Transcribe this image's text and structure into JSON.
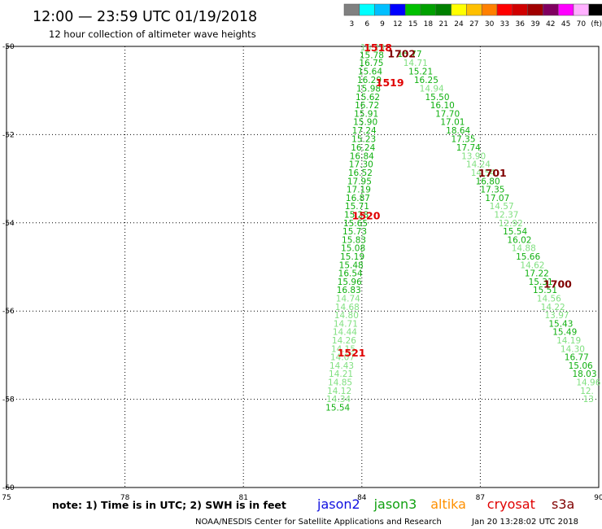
{
  "title": "12:00 — 23:59 UTC 01/19/2018",
  "subtitle": "12 hour collection of altimeter wave heights",
  "scale": {
    "labels": [
      "3",
      "6",
      "9",
      "12",
      "15",
      "18",
      "21",
      "24",
      "27",
      "30",
      "33",
      "36",
      "39",
      "42",
      "45",
      "70",
      "(ft)"
    ],
    "colors": [
      "#808080",
      "#00ffff",
      "#00bfff",
      "#0000ff",
      "#00c000",
      "#00a000",
      "#008000",
      "#ffff00",
      "#ffc000",
      "#ff8000",
      "#ff0000",
      "#d00000",
      "#a00000",
      "#800060",
      "#ff00ff",
      "#ffb0ff",
      "#000000"
    ]
  },
  "note": "note: 1) Time is in UTC; 2) SWH is in feet",
  "satellites": [
    {
      "name": "jason2",
      "color": "#1010e0"
    },
    {
      "name": "jason3",
      "color": "#10a010"
    },
    {
      "name": "altika",
      "color": "#ff9000"
    },
    {
      "name": "cryosat",
      "color": "#e00000"
    },
    {
      "name": "s3a",
      "color": "#800000"
    }
  ],
  "footer": "NOAA/NESDIS Center for Satellite Applications and Research",
  "timestamp": "Jan 20 13:28:02 UTC 2018",
  "chart_data": {
    "type": "scatter",
    "xlim": [
      75,
      90
    ],
    "ylim": [
      -60,
      -50
    ],
    "x_ticks": [
      75,
      78,
      81,
      84,
      87,
      90
    ],
    "y_ticks": [
      -50,
      -52,
      -54,
      -56,
      -58,
      -60
    ],
    "grid": true,
    "tracks": [
      {
        "name": "pass-A",
        "points": [
          {
            "x": 83.96,
            "y": -50.02,
            "v": "16.23",
            "c": "#80e080"
          },
          {
            "x": 83.94,
            "y": -50.19,
            "v": "15.78",
            "c": "#10b010"
          },
          {
            "x": 83.93,
            "y": -50.37,
            "v": "16.75",
            "c": "#10b010"
          },
          {
            "x": 83.9,
            "y": -50.56,
            "v": "15.64",
            "c": "#10b010"
          },
          {
            "x": 83.88,
            "y": -50.76,
            "v": "16.29",
            "c": "#10b010"
          },
          {
            "x": 83.86,
            "y": -50.95,
            "v": "15.98",
            "c": "#10b010"
          },
          {
            "x": 83.84,
            "y": -51.14,
            "v": "15.62",
            "c": "#10b010"
          },
          {
            "x": 83.82,
            "y": -51.33,
            "v": "16.72",
            "c": "#10b010"
          },
          {
            "x": 83.8,
            "y": -51.52,
            "v": "15.91",
            "c": "#10b010"
          },
          {
            "x": 83.78,
            "y": -51.71,
            "v": "15.90",
            "c": "#10b010"
          },
          {
            "x": 83.75,
            "y": -51.9,
            "v": "17.24",
            "c": "#10b010"
          },
          {
            "x": 83.74,
            "y": -52.09,
            "v": "15.23",
            "c": "#10b010"
          },
          {
            "x": 83.72,
            "y": -52.29,
            "v": "16.24",
            "c": "#10b010"
          },
          {
            "x": 83.69,
            "y": -52.48,
            "v": "16.84",
            "c": "#10b010"
          },
          {
            "x": 83.67,
            "y": -52.67,
            "v": "17.30",
            "c": "#10b010"
          },
          {
            "x": 83.65,
            "y": -52.86,
            "v": "16.52",
            "c": "#10b010"
          },
          {
            "x": 83.63,
            "y": -53.05,
            "v": "17.95",
            "c": "#10b010"
          },
          {
            "x": 83.61,
            "y": -53.24,
            "v": "17.19",
            "c": "#10b010"
          },
          {
            "x": 83.59,
            "y": -53.43,
            "v": "16.87",
            "c": "#10b010"
          },
          {
            "x": 83.57,
            "y": -53.62,
            "v": "15.71",
            "c": "#10b010"
          },
          {
            "x": 83.55,
            "y": -53.81,
            "v": "15.28",
            "c": "#10b010"
          },
          {
            "x": 83.53,
            "y": -54,
            "v": "15.65",
            "c": "#10b010"
          },
          {
            "x": 83.51,
            "y": -54.19,
            "v": "15.73",
            "c": "#10b010"
          },
          {
            "x": 83.49,
            "y": -54.38,
            "v": "15.83",
            "c": "#10b010"
          },
          {
            "x": 83.47,
            "y": -54.57,
            "v": "15.08",
            "c": "#10b010"
          },
          {
            "x": 83.45,
            "y": -54.76,
            "v": "15.19",
            "c": "#10b010"
          },
          {
            "x": 83.42,
            "y": -54.95,
            "v": "15.48",
            "c": "#10b010"
          },
          {
            "x": 83.4,
            "y": -55.14,
            "v": "16.54",
            "c": "#10b010"
          },
          {
            "x": 83.38,
            "y": -55.33,
            "v": "15.96",
            "c": "#10b010"
          },
          {
            "x": 83.36,
            "y": -55.52,
            "v": "16.83",
            "c": "#10b010"
          },
          {
            "x": 83.34,
            "y": -55.71,
            "v": "14.74",
            "c": "#80e080"
          },
          {
            "x": 83.32,
            "y": -55.9,
            "v": "14.68",
            "c": "#80e080"
          },
          {
            "x": 83.3,
            "y": -56.09,
            "v": "14.80",
            "c": "#80e080"
          },
          {
            "x": 83.28,
            "y": -56.28,
            "v": "14.71",
            "c": "#80e080"
          },
          {
            "x": 83.26,
            "y": -56.47,
            "v": "14.44",
            "c": "#80e080"
          },
          {
            "x": 83.24,
            "y": -56.66,
            "v": "14.26",
            "c": "#80e080"
          },
          {
            "x": 83.22,
            "y": -56.85,
            "v": "14.15",
            "c": "#80e080"
          },
          {
            "x": 83.2,
            "y": -57.04,
            "v": "14.07",
            "c": "#80e080"
          },
          {
            "x": 83.18,
            "y": -57.23,
            "v": "14.43",
            "c": "#80e080"
          },
          {
            "x": 83.16,
            "y": -57.42,
            "v": "14.21",
            "c": "#80e080"
          },
          {
            "x": 83.14,
            "y": -57.61,
            "v": "14.85",
            "c": "#80e080"
          },
          {
            "x": 83.12,
            "y": -57.8,
            "v": "14.12",
            "c": "#80e080"
          },
          {
            "x": 83.1,
            "y": -57.99,
            "v": "14.34",
            "c": "#80e080"
          },
          {
            "x": 83.08,
            "y": -58.18,
            "v": "15.54",
            "c": "#10b010"
          }
        ]
      },
      {
        "name": "pass-B",
        "points": [
          {
            "x": 84.9,
            "y": -50.17,
            "v": "15.77",
            "c": "#10b010"
          },
          {
            "x": 85.05,
            "y": -50.37,
            "v": "14.71",
            "c": "#80e080"
          },
          {
            "x": 85.18,
            "y": -50.56,
            "v": "15.21",
            "c": "#10b010"
          },
          {
            "x": 85.32,
            "y": -50.76,
            "v": "16.25",
            "c": "#10b010"
          },
          {
            "x": 85.46,
            "y": -50.95,
            "v": "14.94",
            "c": "#80e080"
          },
          {
            "x": 85.6,
            "y": -51.14,
            "v": "15.50",
            "c": "#10b010"
          },
          {
            "x": 85.73,
            "y": -51.33,
            "v": "16.10",
            "c": "#10b010"
          },
          {
            "x": 85.86,
            "y": -51.52,
            "v": "17.70",
            "c": "#10b010"
          },
          {
            "x": 85.99,
            "y": -51.71,
            "v": "17.01",
            "c": "#10b010"
          },
          {
            "x": 86.13,
            "y": -51.9,
            "v": "18.64",
            "c": "#10b010"
          },
          {
            "x": 86.26,
            "y": -52.09,
            "v": "17.35",
            "c": "#10b010"
          },
          {
            "x": 86.39,
            "y": -52.29,
            "v": "17.74",
            "c": "#10b010"
          },
          {
            "x": 86.52,
            "y": -52.48,
            "v": "13.90",
            "c": "#80e080"
          },
          {
            "x": 86.64,
            "y": -52.67,
            "v": "14.24",
            "c": "#80e080"
          },
          {
            "x": 86.76,
            "y": -52.86,
            "v": "14.54",
            "c": "#80e080"
          },
          {
            "x": 86.88,
            "y": -53.05,
            "v": "16.80",
            "c": "#10b010"
          },
          {
            "x": 87,
            "y": -53.24,
            "v": "17.35",
            "c": "#10b010"
          },
          {
            "x": 87.12,
            "y": -53.43,
            "v": "17.07",
            "c": "#10b010"
          },
          {
            "x": 87.23,
            "y": -53.62,
            "v": "14.57",
            "c": "#80e080"
          },
          {
            "x": 87.35,
            "y": -53.81,
            "v": "12.37",
            "c": "#80e080"
          },
          {
            "x": 87.46,
            "y": -54,
            "v": "12.92",
            "c": "#80e080"
          },
          {
            "x": 87.57,
            "y": -54.19,
            "v": "15.54",
            "c": "#10b010"
          },
          {
            "x": 87.68,
            "y": -54.38,
            "v": "16.02",
            "c": "#10b010"
          },
          {
            "x": 87.79,
            "y": -54.57,
            "v": "14.88",
            "c": "#80e080"
          },
          {
            "x": 87.9,
            "y": -54.76,
            "v": "15.66",
            "c": "#10b010"
          },
          {
            "x": 88.01,
            "y": -54.95,
            "v": "14.62",
            "c": "#80e080"
          },
          {
            "x": 88.12,
            "y": -55.14,
            "v": "17.22",
            "c": "#10b010"
          },
          {
            "x": 88.22,
            "y": -55.33,
            "v": "15.31",
            "c": "#10b010"
          },
          {
            "x": 88.33,
            "y": -55.52,
            "v": "15.51",
            "c": "#10b010"
          },
          {
            "x": 88.43,
            "y": -55.71,
            "v": "14.56",
            "c": "#80e080"
          },
          {
            "x": 88.53,
            "y": -55.9,
            "v": "14.22",
            "c": "#80e080"
          },
          {
            "x": 88.63,
            "y": -56.09,
            "v": "13.97",
            "c": "#80e080"
          },
          {
            "x": 88.73,
            "y": -56.28,
            "v": "15.43",
            "c": "#10b010"
          },
          {
            "x": 88.83,
            "y": -56.47,
            "v": "15.49",
            "c": "#10b010"
          },
          {
            "x": 88.93,
            "y": -56.66,
            "v": "14.19",
            "c": "#80e080"
          },
          {
            "x": 89.03,
            "y": -56.85,
            "v": "14.30",
            "c": "#80e080"
          },
          {
            "x": 89.13,
            "y": -57.04,
            "v": "16.77",
            "c": "#10b010"
          },
          {
            "x": 89.23,
            "y": -57.23,
            "v": "15.06",
            "c": "#10b010"
          },
          {
            "x": 89.33,
            "y": -57.42,
            "v": "18.03",
            "c": "#10b010"
          },
          {
            "x": 89.43,
            "y": -57.61,
            "v": "14.96",
            "c": "#80e080"
          },
          {
            "x": 89.53,
            "y": -57.8,
            "v": "12.",
            "c": "#80e080"
          },
          {
            "x": 89.6,
            "y": -57.99,
            "v": "13",
            "c": "#80e080"
          }
        ]
      }
    ],
    "pass_times": [
      {
        "x": 84.05,
        "y": -50.02,
        "t": "1518",
        "c": "#e00000"
      },
      {
        "x": 84.65,
        "y": -50.16,
        "t": "1702",
        "c": "#800000"
      },
      {
        "x": 84.35,
        "y": -50.81,
        "t": "1519",
        "c": "#e00000"
      },
      {
        "x": 86.95,
        "y": -52.86,
        "t": "1701",
        "c": "#800000"
      },
      {
        "x": 83.75,
        "y": -53.83,
        "t": "1520",
        "c": "#e00000"
      },
      {
        "x": 88.6,
        "y": -55.38,
        "t": "1700",
        "c": "#800000"
      },
      {
        "x": 83.38,
        "y": -56.94,
        "t": "1521",
        "c": "#e00000"
      }
    ]
  }
}
